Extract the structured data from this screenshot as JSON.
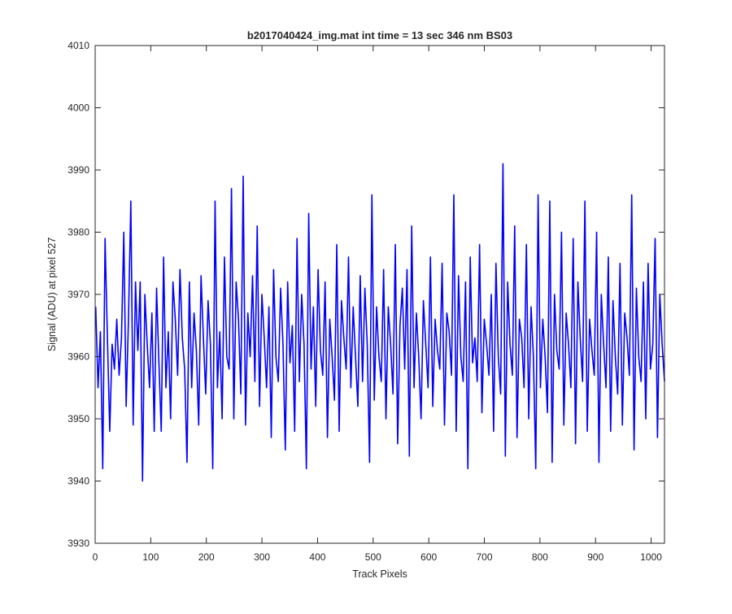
{
  "chart_data": {
    "type": "line",
    "title": "b2017040424_img.mat int time = 13 sec  346 nm BS03",
    "xlabel": "Track Pixels",
    "ylabel": "Signal (ADU) at pixel 527",
    "xlim": [
      0,
      1024
    ],
    "ylim": [
      3930,
      4010
    ],
    "xticks": [
      0,
      100,
      200,
      300,
      400,
      500,
      600,
      700,
      800,
      900,
      1000
    ],
    "yticks": [
      3930,
      3940,
      3950,
      3960,
      3970,
      3980,
      3990,
      4000,
      4010
    ],
    "grid": false,
    "box": true,
    "series": [
      {
        "color": "#0000ff",
        "x_start": 1,
        "x_step": 1,
        "values": [
          3968,
          3955,
          3964,
          3942,
          3979,
          3963,
          3948,
          3962,
          3958,
          3966,
          3957,
          3963,
          3980,
          3952,
          3966,
          3985,
          3949,
          3972,
          3961,
          3972,
          3940,
          3970,
          3962,
          3955,
          3967,
          3948,
          3971,
          3959,
          3948,
          3976,
          3955,
          3964,
          3950,
          3972,
          3966,
          3957,
          3974,
          3963,
          3958,
          3943,
          3972,
          3955,
          3967,
          3961,
          3949,
          3973,
          3963,
          3954,
          3969,
          3962,
          3942,
          3985,
          3955,
          3964,
          3950,
          3976,
          3960,
          3958,
          3987,
          3950,
          3972,
          3966,
          3954,
          3989,
          3949,
          3967,
          3960,
          3973,
          3956,
          3981,
          3952,
          3970,
          3963,
          3955,
          3968,
          3947,
          3974,
          3960,
          3956,
          3971,
          3962,
          3945,
          3972,
          3959,
          3965,
          3948,
          3979,
          3956,
          3970,
          3962,
          3942,
          3983,
          3958,
          3968,
          3952,
          3974,
          3961,
          3957,
          3972,
          3947,
          3966,
          3960,
          3953,
          3978,
          3948,
          3969,
          3963,
          3958,
          3976,
          3955,
          3968,
          3960,
          3952,
          3973,
          3956,
          3971,
          3962,
          3943,
          3986,
          3953,
          3968,
          3960,
          3956,
          3974,
          3950,
          3968,
          3962,
          3954,
          3978,
          3946,
          3965,
          3971,
          3958,
          3974,
          3944,
          3981,
          3955,
          3967,
          3960,
          3950,
          3969,
          3962,
          3955,
          3976,
          3952,
          3966,
          3961,
          3958,
          3975,
          3949,
          3967,
          3964,
          3957,
          3986,
          3948,
          3973,
          3960,
          3956,
          3972,
          3942,
          3976,
          3959,
          3963,
          3956,
          3978,
          3951,
          3966,
          3962,
          3957,
          3970,
          3948,
          3975,
          3960,
          3954,
          3991,
          3944,
          3972,
          3962,
          3957,
          3981,
          3947,
          3966,
          3963,
          3955,
          3978,
          3950,
          3968,
          3960,
          3942,
          3986,
          3955,
          3966,
          3960,
          3951,
          3985,
          3943,
          3970,
          3961,
          3958,
          3980,
          3949,
          3967,
          3962,
          3955,
          3979,
          3946,
          3972,
          3963,
          3956,
          3985,
          3948,
          3966,
          3961,
          3957,
          3980,
          3943,
          3970,
          3962,
          3955,
          3976,
          3948,
          3969,
          3960,
          3954,
          3975,
          3949,
          3967,
          3963,
          3957,
          3986,
          3945,
          3971,
          3960,
          3956,
          3972,
          3950,
          3975,
          3958,
          3962,
          3979,
          3947,
          3970,
          3962,
          3956
        ]
      }
    ]
  }
}
